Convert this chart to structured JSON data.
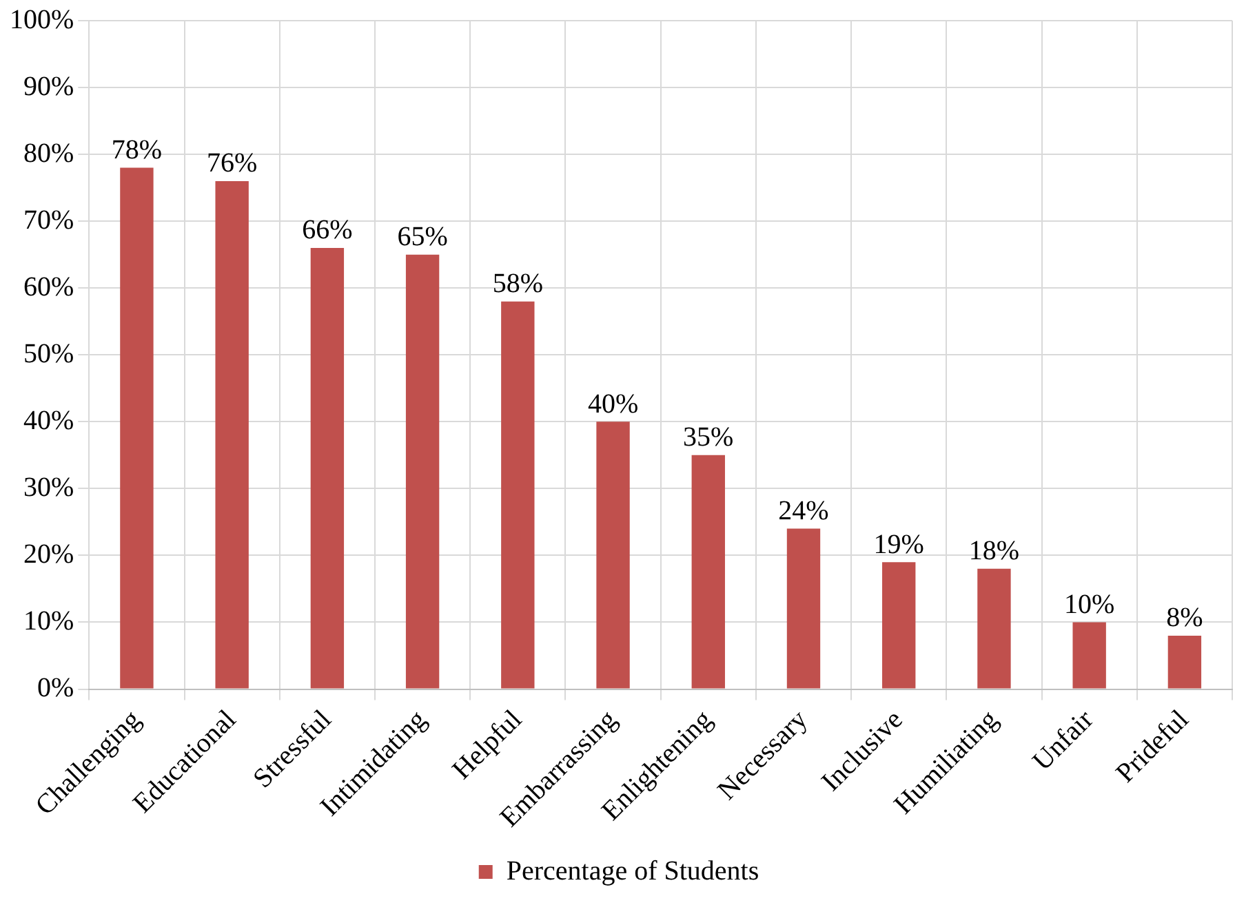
{
  "chart_data": {
    "type": "bar",
    "categories": [
      "Challenging",
      "Educational",
      "Stressful",
      "Intimidating",
      "Helpful",
      "Embarrassing",
      "Enlightening",
      "Necessary",
      "Inclusive",
      "Humiliating",
      "Unfair",
      "Prideful"
    ],
    "series": [
      {
        "name": "Percentage of Students",
        "color": "#c0504d",
        "values": [
          78,
          76,
          66,
          65,
          58,
          40,
          35,
          24,
          19,
          18,
          10,
          8
        ],
        "value_labels": [
          "78%",
          "76%",
          "66%",
          "65%",
          "58%",
          "40%",
          "35%",
          "24%",
          "19%",
          "18%",
          "10%",
          "8%"
        ]
      }
    ],
    "ylim": [
      0,
      100
    ],
    "yticks": [
      {
        "value": 0,
        "label": "0%"
      },
      {
        "value": 10,
        "label": "10%"
      },
      {
        "value": 20,
        "label": "20%"
      },
      {
        "value": 30,
        "label": "30%"
      },
      {
        "value": 40,
        "label": "40%"
      },
      {
        "value": 50,
        "label": "50%"
      },
      {
        "value": 60,
        "label": "60%"
      },
      {
        "value": 70,
        "label": "70%"
      },
      {
        "value": 80,
        "label": "80%"
      },
      {
        "value": 90,
        "label": "90%"
      },
      {
        "value": 100,
        "label": "100%"
      }
    ],
    "grid": true,
    "legend": "bottom"
  }
}
